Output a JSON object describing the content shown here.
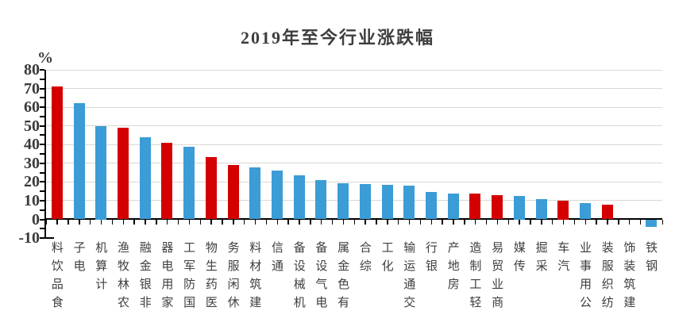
{
  "title": "2019年至今行业涨跌幅",
  "y_axis": {
    "unit_label": "%",
    "ticks": [
      80,
      70,
      60,
      50,
      40,
      30,
      20,
      10,
      0,
      -10
    ]
  },
  "chart_data": {
    "type": "bar",
    "title": "2019年至今行业涨跌幅",
    "xlabel": "",
    "ylabel": "%",
    "ylim": [
      -10,
      80
    ],
    "grid": true,
    "legend": false,
    "categories": [
      "食品饮料",
      "电子",
      "计算机",
      "农林牧渔",
      "非银金融",
      "家用电器",
      "国防军工",
      "医药生物",
      "休闲服务",
      "建筑材料",
      "通信",
      "机械设备",
      "电气设备",
      "有色金属",
      "综合",
      "化工",
      "交通运输",
      "银行",
      "房地产",
      "轻工制造",
      "商业贸易",
      "传媒",
      "采掘",
      "汽车",
      "公用事业",
      "纺织服装",
      "建筑装饰",
      "钢铁"
    ],
    "values": [
      71,
      62,
      50,
      49,
      44,
      41,
      39,
      33.5,
      29,
      28,
      26,
      23.5,
      21,
      19.5,
      19,
      18.5,
      18,
      14.5,
      14,
      14,
      13,
      12.5,
      11,
      10,
      8.5,
      8,
      0,
      -4
    ],
    "colors": [
      "red",
      "blue",
      "blue",
      "red",
      "blue",
      "red",
      "blue",
      "red",
      "red",
      "blue",
      "blue",
      "blue",
      "blue",
      "blue",
      "blue",
      "blue",
      "blue",
      "blue",
      "blue",
      "red",
      "red",
      "blue",
      "blue",
      "red",
      "blue",
      "red",
      "blue",
      "blue"
    ],
    "palette": {
      "red": "#d40000",
      "blue": "#3b9cd6"
    },
    "gridline_color": "#dbd8d1",
    "axis_color": "#000000",
    "text_color": "#3e3e3e"
  }
}
